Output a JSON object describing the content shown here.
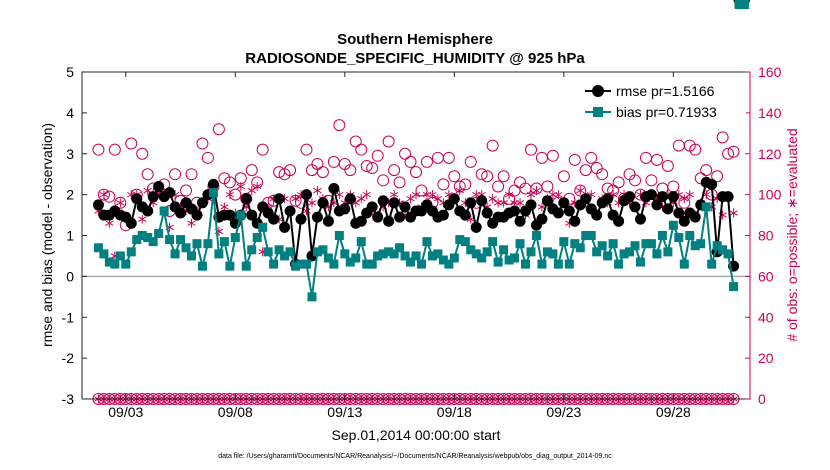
{
  "chart_data": {
    "type": "line",
    "title_line1": "Southern Hemisphere",
    "title_line2": "RADIOSONDE_SPECIFIC_HUMIDITY @ 925 hPa",
    "xlabel": "Sep.01,2014 00:00:00 start",
    "ylabel_left": "rmse and bias (model - observation)",
    "ylabel_right": "# of obs: o=possible; ∗=evaluated",
    "ylim_left": [
      -3,
      5
    ],
    "ylim_right": [
      0,
      160
    ],
    "yticks_left": [
      "-3",
      "-2",
      "-1",
      "0",
      "1",
      "2",
      "3",
      "4",
      "5"
    ],
    "yticks_right": [
      "0",
      "20",
      "40",
      "60",
      "80",
      "100",
      "120",
      "140",
      "160"
    ],
    "xlim": [
      1,
      31.5
    ],
    "xticks": [
      {
        "x": 3,
        "label": "09/03"
      },
      {
        "x": 8,
        "label": "09/08"
      },
      {
        "x": 13,
        "label": "09/13"
      },
      {
        "x": 18,
        "label": "09/18"
      },
      {
        "x": 23,
        "label": "09/23"
      },
      {
        "x": 28,
        "label": "09/28"
      }
    ],
    "footer": "data file: /Users/gharamti/Documents/NCAR/Reanalysis/~/Documents/NCAR/Reanalysis/webpub/obs_diag_output_2014-09.nc",
    "legend": {
      "position": "top-right",
      "rmse_label": "rmse pr=1.5166",
      "bias_label": "bias pr=0.71933"
    },
    "colors": {
      "rmse": "#000000",
      "bias": "#008080",
      "obs": "#cc0055",
      "zero_line": "#aaaaaa"
    },
    "x": [
      1.75,
      2.0,
      2.25,
      2.5,
      2.75,
      3.0,
      3.25,
      3.5,
      3.75,
      4.0,
      4.25,
      4.5,
      4.75,
      5.0,
      5.25,
      5.5,
      5.75,
      6.0,
      6.25,
      6.5,
      6.75,
      7.0,
      7.25,
      7.5,
      7.75,
      8.0,
      8.25,
      8.5,
      8.75,
      9.0,
      9.25,
      9.5,
      9.75,
      10.0,
      10.25,
      10.5,
      10.75,
      11.0,
      11.25,
      11.5,
      11.75,
      12.0,
      12.25,
      12.5,
      12.75,
      13.0,
      13.25,
      13.5,
      13.75,
      14.0,
      14.25,
      14.5,
      14.75,
      15.0,
      15.25,
      15.5,
      15.75,
      16.0,
      16.25,
      16.5,
      16.75,
      17.0,
      17.25,
      17.5,
      17.75,
      18.0,
      18.25,
      18.5,
      18.75,
      19.0,
      19.25,
      19.5,
      19.75,
      20.0,
      20.25,
      20.5,
      20.75,
      21.0,
      21.25,
      21.5,
      21.75,
      22.0,
      22.25,
      22.5,
      22.75,
      23.0,
      23.25,
      23.5,
      23.75,
      24.0,
      24.25,
      24.5,
      24.75,
      25.0,
      25.25,
      25.5,
      25.75,
      26.0,
      26.25,
      26.5,
      26.75,
      27.0,
      27.25,
      27.5,
      27.75,
      28.0,
      28.25,
      28.5,
      28.75,
      29.0,
      29.25,
      29.5,
      29.75,
      30.0,
      30.25,
      30.5,
      30.75,
      31.0,
      31.25
    ],
    "rmse": [
      1.75,
      1.5,
      1.5,
      1.6,
      1.5,
      1.45,
      1.3,
      1.9,
      1.7,
      1.6,
      1.95,
      2.2,
      1.95,
      2.05,
      1.7,
      1.55,
      1.8,
      1.65,
      1.5,
      1.8,
      2.0,
      2.25,
      1.45,
      1.5,
      1.5,
      1.3,
      1.5,
      1.9,
      1.5,
      1.3,
      1.7,
      1.55,
      1.4,
      1.9,
      1.2,
      1.6,
      0.3,
      1.4,
      2.0,
      0.5,
      1.45,
      1.8,
      1.35,
      2.15,
      1.6,
      1.65,
      1.9,
      1.3,
      1.35,
      1.55,
      1.7,
      1.45,
      1.85,
      1.35,
      1.8,
      1.45,
      1.7,
      1.45,
      1.6,
      1.6,
      1.75,
      1.6,
      1.45,
      1.5,
      1.75,
      1.9,
      1.6,
      1.5,
      1.8,
      1.2,
      1.85,
      1.55,
      1.3,
      1.45,
      1.45,
      1.55,
      1.6,
      1.35,
      1.6,
      1.75,
      1.25,
      1.4,
      1.85,
      1.65,
      1.55,
      1.8,
      1.6,
      1.35,
      1.75,
      1.9,
      1.65,
      1.5,
      1.8,
      1.9,
      1.5,
      1.35,
      1.85,
      1.95,
      1.7,
      1.4,
      1.95,
      2.0,
      1.75,
      1.95,
      1.65,
      1.95,
      1.55,
      1.35,
      1.55,
      1.45,
      1.75,
      2.3,
      2.25,
      0.6,
      1.95,
      1.95,
      0.25
    ],
    "bias": [
      0.7,
      0.55,
      0.35,
      0.3,
      0.5,
      0.3,
      0.6,
      0.9,
      1.0,
      0.95,
      0.85,
      1.05,
      1.6,
      0.9,
      0.55,
      0.9,
      0.7,
      0.5,
      0.8,
      0.25,
      0.8,
      2.05,
      0.55,
      0.85,
      0.25,
      0.95,
      1.5,
      0.25,
      0.65,
      0.95,
      1.2,
      0.6,
      0.3,
      0.65,
      0.5,
      0.6,
      0.25,
      0.3,
      0.3,
      -0.5,
      0.6,
      0.65,
      0.45,
      0.3,
      1.0,
      0.55,
      0.35,
      0.45,
      0.85,
      0.3,
      0.3,
      0.5,
      0.55,
      0.6,
      0.55,
      0.7,
      0.5,
      0.35,
      0.5,
      0.3,
      0.85,
      0.5,
      0.55,
      0.4,
      0.3,
      0.45,
      0.9,
      0.85,
      0.65,
      0.55,
      0.45,
      0.6,
      0.85,
      0.35,
      0.65,
      0.4,
      0.45,
      0.8,
      0.3,
      0.6,
      1.0,
      0.3,
      0.6,
      0.55,
      0.3,
      0.85,
      0.3,
      0.8,
      0.7,
      1.0,
      1.0,
      0.6,
      0.75,
      0.5,
      0.8,
      0.3,
      0.55,
      0.6,
      0.75,
      0.35,
      0.8,
      0.8,
      0.55,
      1.0,
      0.6,
      1.25,
      0.95,
      0.3,
      1.0,
      0.75,
      0.8,
      1.7,
      0.3,
      0.75,
      0.65,
      0.55,
      -0.25
    ],
    "possible": [
      122,
      100,
      99,
      122,
      96,
      85,
      125,
      100,
      120,
      110,
      103,
      102,
      105,
      92,
      110,
      97,
      102,
      110,
      96,
      125,
      118,
      104,
      132,
      108,
      106,
      100,
      108,
      98,
      112,
      106,
      122,
      96,
      97,
      111,
      110,
      112,
      97,
      96,
      122,
      112,
      115,
      111,
      97,
      116,
      134,
      115,
      112,
      126,
      122,
      114,
      113,
      119,
      107,
      126,
      112,
      106,
      120,
      116,
      111,
      102,
      116,
      96,
      118,
      105,
      118,
      109,
      104,
      105,
      116,
      96,
      110,
      109,
      124,
      104,
      109,
      98,
      102,
      106,
      103,
      122,
      103,
      118,
      104,
      119,
      96,
      109,
      98,
      117,
      102,
      112,
      118,
      113,
      110,
      103,
      102,
      106,
      98,
      110,
      107,
      100,
      118,
      107,
      117,
      103,
      114,
      104,
      124,
      96,
      124,
      122,
      108,
      112,
      100,
      109,
      128,
      120,
      121
    ],
    "evaluated": [
      92,
      100,
      86,
      70,
      96,
      88,
      100,
      100,
      88,
      102,
      96,
      101,
      101,
      84,
      100,
      94,
      92,
      86,
      92,
      96,
      98,
      100,
      82,
      94,
      100,
      91,
      104,
      94,
      102,
      104,
      72,
      94,
      98,
      88,
      98,
      92,
      98,
      100,
      92,
      96,
      102,
      98,
      94,
      96,
      100,
      96,
      100,
      96,
      98,
      100,
      92,
      90,
      94,
      96,
      100,
      96,
      92,
      98,
      100,
      94,
      100,
      100,
      98,
      96,
      100,
      98,
      102,
      96,
      88,
      100,
      100,
      94,
      98,
      96,
      96,
      100,
      96,
      96,
      90,
      100,
      102,
      94,
      98,
      100,
      100,
      96,
      86,
      96,
      102,
      96,
      100,
      90,
      98,
      96,
      100,
      96,
      100,
      96,
      94,
      100,
      96,
      100,
      98,
      94,
      100,
      96,
      100,
      98,
      100,
      90,
      96,
      100,
      94,
      98,
      90,
      98,
      91
    ]
  }
}
